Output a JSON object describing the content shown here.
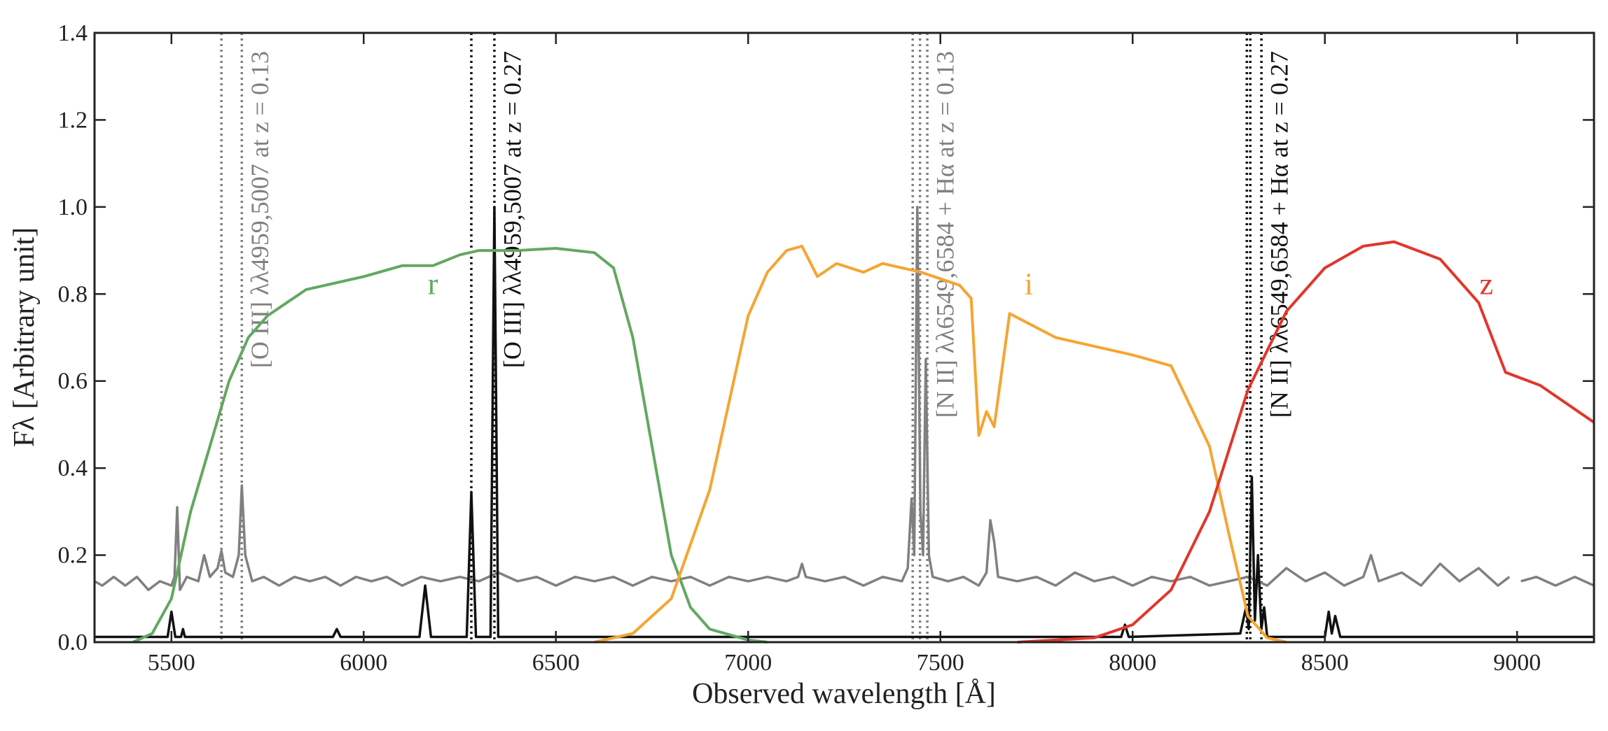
{
  "chart_data": {
    "type": "line",
    "xlabel": "Observed wavelength [Å]",
    "ylabel": "Fλ [Arbitrary unit]",
    "xlim": [
      5300,
      9200
    ],
    "ylim": [
      0,
      1.4
    ],
    "xticks": [
      5500,
      6000,
      6500,
      7000,
      7500,
      8000,
      8500,
      9000
    ],
    "yticks": [
      {
        "value": 0,
        "label": "0.0"
      },
      0.2,
      0.4,
      0.6,
      0.8,
      {
        "value": 1,
        "label": "1.0"
      },
      1.2,
      1.4
    ],
    "series": [
      {
        "color": "#808080",
        "x": [
          5300,
          5320,
          5350,
          5380,
          5410,
          5440,
          5470,
          5500,
          5508,
          5515,
          5522,
          5540,
          5570,
          5585,
          5600,
          5620,
          5630,
          5640,
          5660,
          5675,
          5683,
          5692,
          5710,
          5740,
          5780,
          5820,
          5860,
          5900,
          5940,
          5980,
          6020,
          6060,
          6100,
          6150,
          6200,
          6250,
          6300,
          6350,
          6400,
          6450,
          6500,
          6550,
          6600,
          6650,
          6700,
          6750,
          6800,
          6850,
          6900,
          6950,
          7000,
          7050,
          7100,
          7130,
          7140,
          7150,
          7200,
          7250,
          7300,
          7350,
          7400,
          7415,
          7425,
          7432,
          7440,
          7448,
          7455,
          7462,
          7470,
          7480,
          7520,
          7560,
          7600,
          7620,
          7630,
          7640,
          7650,
          7700,
          7750,
          7800,
          7850,
          7900,
          7950,
          8000,
          8050,
          8100,
          8150,
          8200,
          8250,
          8300,
          8350,
          8400,
          8450,
          8500,
          8550,
          8600,
          8620,
          8640,
          8700,
          8750,
          8800,
          8850,
          8900,
          8950,
          8980,
          8995,
          9010,
          9050,
          9100,
          9150,
          9200
        ],
        "values": [
          0.14,
          0.13,
          0.15,
          0.13,
          0.15,
          0.12,
          0.14,
          0.13,
          0.15,
          0.31,
          0.12,
          0.15,
          0.14,
          0.2,
          0.15,
          0.17,
          0.21,
          0.16,
          0.15,
          0.2,
          0.36,
          0.2,
          0.14,
          0.15,
          0.13,
          0.15,
          0.14,
          0.15,
          0.13,
          0.15,
          0.14,
          0.15,
          0.13,
          0.15,
          0.14,
          0.15,
          0.14,
          0.16,
          0.14,
          0.15,
          0.13,
          0.15,
          0.14,
          0.15,
          0.13,
          0.15,
          0.14,
          0.15,
          0.13,
          0.15,
          0.14,
          0.15,
          0.14,
          0.15,
          0.18,
          0.15,
          0.14,
          0.15,
          0.13,
          0.15,
          0.14,
          0.17,
          0.33,
          0.2,
          1.0,
          0.3,
          0.2,
          0.65,
          0.2,
          0.15,
          0.14,
          0.15,
          0.13,
          0.16,
          0.28,
          0.23,
          0.15,
          0.14,
          0.15,
          0.13,
          0.16,
          0.14,
          0.15,
          0.13,
          0.15,
          0.14,
          0.15,
          0.13,
          0.14,
          0.15,
          0.13,
          0.17,
          0.14,
          0.16,
          0.13,
          0.15,
          0.2,
          0.14,
          0.16,
          0.13,
          0.18,
          0.14,
          0.17,
          0.13,
          0.15,
          null,
          0.14,
          0.15,
          0.13,
          0.15,
          0.13
        ]
      },
      {
        "color": "#111111",
        "x": [
          5300,
          5490,
          5500,
          5510,
          5525,
          5530,
          5535,
          5920,
          5930,
          5940,
          6145,
          6160,
          6175,
          6268,
          6280,
          6292,
          6330,
          6340,
          6350,
          7970,
          7980,
          7990,
          8280,
          8295,
          8302,
          8310,
          8318,
          8326,
          8335,
          8342,
          8350,
          8500,
          8510,
          8518,
          8527,
          8540,
          9200
        ],
        "values": [
          0.012,
          0.012,
          0.07,
          0.012,
          0.012,
          0.03,
          0.012,
          0.012,
          0.03,
          0.012,
          0.012,
          0.13,
          0.012,
          0.012,
          0.345,
          0.012,
          0.012,
          1.0,
          0.012,
          0.012,
          0.04,
          0.012,
          0.02,
          0.08,
          0.03,
          0.38,
          0.05,
          0.2,
          0.03,
          0.08,
          0.012,
          0.012,
          0.07,
          0.02,
          0.06,
          0.012,
          0.012
        ]
      },
      {
        "name": "r",
        "color": "#62a862",
        "x": [
          5400,
          5450,
          5500,
          5550,
          5600,
          5650,
          5700,
          5750,
          5800,
          5850,
          6000,
          6100,
          6180,
          6250,
          6300,
          6400,
          6500,
          6600,
          6650,
          6700,
          6750,
          6800,
          6850,
          6900,
          7000,
          7050
        ],
        "values": [
          0.0,
          0.02,
          0.1,
          0.3,
          0.45,
          0.6,
          0.7,
          0.75,
          0.78,
          0.81,
          0.84,
          0.865,
          0.865,
          0.89,
          0.9,
          0.9,
          0.905,
          0.895,
          0.86,
          0.7,
          0.45,
          0.2,
          0.08,
          0.03,
          0.005,
          0.0
        ]
      },
      {
        "name": "i",
        "color": "#f5a532",
        "x": [
          6600,
          6700,
          6800,
          6900,
          6950,
          7000,
          7050,
          7100,
          7140,
          7180,
          7230,
          7300,
          7350,
          7450,
          7550,
          7580,
          7600,
          7620,
          7640,
          7680,
          7800,
          8000,
          8100,
          8200,
          8250,
          8300,
          8350,
          8400
        ],
        "values": [
          0.0,
          0.02,
          0.1,
          0.35,
          0.55,
          0.75,
          0.85,
          0.9,
          0.91,
          0.84,
          0.87,
          0.85,
          0.87,
          0.85,
          0.82,
          0.79,
          0.475,
          0.53,
          0.495,
          0.755,
          0.7,
          0.66,
          0.635,
          0.45,
          0.25,
          0.06,
          0.01,
          0.0
        ]
      },
      {
        "name": "z",
        "color": "#e2362b",
        "x": [
          7700,
          7900,
          8000,
          8100,
          8200,
          8300,
          8400,
          8500,
          8600,
          8680,
          8800,
          8900,
          8970,
          9060,
          9200
        ],
        "values": [
          0.0,
          0.01,
          0.04,
          0.12,
          0.3,
          0.58,
          0.76,
          0.86,
          0.91,
          0.92,
          0.88,
          0.78,
          0.62,
          0.59,
          0.505
        ]
      }
    ],
    "annotations": [
      {
        "text": "[O III] λλ4959,5007 at z = 0.13",
        "color": "#808080",
        "lines": [
          5630,
          5683
        ]
      },
      {
        "text": "[O III] λλ4959,5007 at z = 0.27",
        "color": "#111111",
        "lines": [
          6280,
          6340
        ]
      },
      {
        "text": "[N II] λλ6549,6584 + Hα at z = 0.13",
        "color": "#808080",
        "lines": [
          7428,
          7447,
          7466
        ]
      },
      {
        "text": "[N II] λλ6549,6584 + Hα at z = 0.27",
        "color": "#111111",
        "lines": [
          8297,
          8306,
          8335
        ]
      }
    ]
  }
}
